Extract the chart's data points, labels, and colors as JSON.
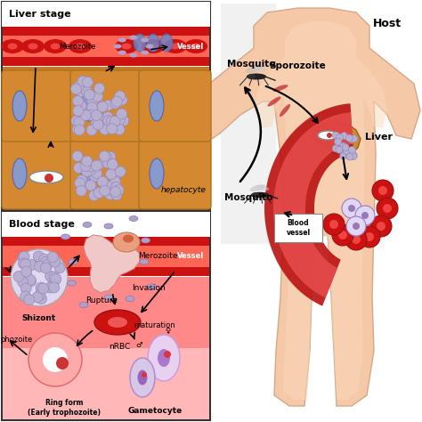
{
  "bg_color": "#ffffff",
  "body_color": "#f5c8a8",
  "body_shadow": "#e8b090",
  "liver_color": "#cc8833",
  "liver_dark": "#b07020",
  "blood_vessel_dark": "#aa1111",
  "blood_vessel_light": "#f08080",
  "hepato_bg": "#c87820",
  "hepato_cell": "#d48830",
  "vessel_red": "#cc1111",
  "vessel_pink": "#ff6655",
  "blood_stage_red": "#dd3333",
  "blood_stage_pink": "#ffbbbb",
  "purple_dot": "#b0a8cc",
  "blue_nucleus": "#7788cc",
  "text_host": "Host",
  "text_liver": "Liver",
  "text_mosquito1": "Mosquito",
  "text_sporozoite": "Sporozoite",
  "text_mosquito2": "Mosquito",
  "text_blood_vessel": "Blood\nvessel",
  "text_liver_stage": "Liver stage",
  "text_blood_stage": "Blood stage",
  "text_merozoite_liver": "Merozoite",
  "text_vessel_liver": "Vessel",
  "text_hepatocyte": "hepatocyte",
  "text_merozoite_blood": "Merozoite",
  "text_vessel_blood": "Vessel",
  "text_shizont": "Shizont",
  "text_rupture": "Rupture",
  "text_invasion": "Invasion",
  "text_nrbc": "nRBC",
  "text_maturation": "maturation",
  "text_gametocyte": "Gametocyte",
  "text_ring": "Ring form\n(Early trophozoite)",
  "text_trophozoite": "phozoite"
}
